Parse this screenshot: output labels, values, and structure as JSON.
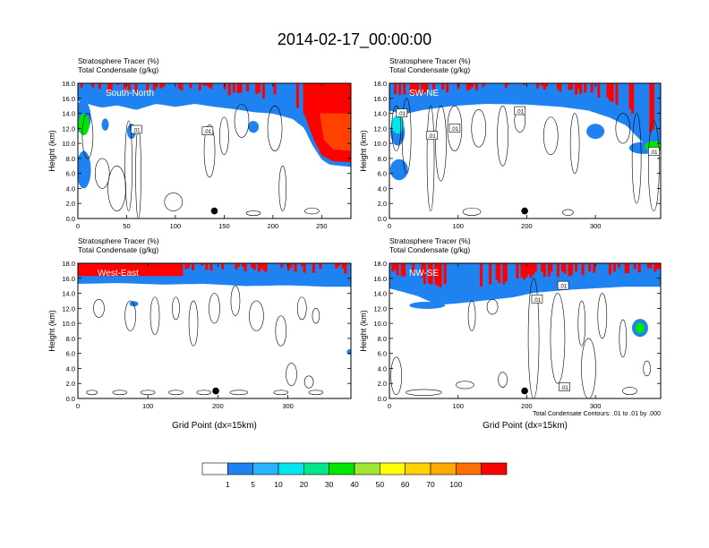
{
  "figure": {
    "title": "2014-02-17_00:00:00",
    "footnote": "Total Condensate Contours: .01 to .01 by .000"
  },
  "colorbar": {
    "colors": [
      "#ffffff",
      "#1e82f0",
      "#28b4ff",
      "#00e6f0",
      "#00e68c",
      "#00e600",
      "#a0e632",
      "#ffff00",
      "#ffd200",
      "#ffaa00",
      "#ff6e00",
      "#ff0000"
    ],
    "labels": [
      "1",
      "5",
      "10",
      "20",
      "30",
      "40",
      "50",
      "60",
      "70",
      "100"
    ]
  },
  "chart_data": [
    {
      "type": "heatmap",
      "panel_label": "South-North",
      "title_line1": "Stratosphere Tracer   (%)",
      "title_line2": "Total Condensate   (g/kg)",
      "ylabel": "Height (km)",
      "xlabel": "",
      "xlim": [
        0,
        280
      ],
      "ylim": [
        0,
        18
      ],
      "x_ticks": [
        0,
        50,
        100,
        150,
        200,
        250
      ],
      "y_ticks": [
        "0.0",
        "2.0",
        "4.0",
        "6.0",
        "8.0",
        "10.0",
        "12.0",
        "14.0",
        "16.0",
        "18.0"
      ],
      "tracer_base_profile_km": [
        [
          0,
          15.8
        ],
        [
          15,
          15.2
        ],
        [
          25,
          14.9
        ],
        [
          40,
          15.2
        ],
        [
          60,
          14.6
        ],
        [
          80,
          15.4
        ],
        [
          100,
          15.0
        ],
        [
          120,
          15.4
        ],
        [
          140,
          15.0
        ],
        [
          160,
          14.7
        ],
        [
          180,
          14.3
        ],
        [
          200,
          14.1
        ],
        [
          220,
          13.4
        ],
        [
          232,
          12.2
        ],
        [
          240,
          10.0
        ],
        [
          250,
          8.0
        ],
        [
          258,
          7.3
        ],
        [
          280,
          7.0
        ]
      ],
      "contour_labels": [
        {
          "text": ".01",
          "x": 60,
          "y": 11.8
        },
        {
          "text": ".01",
          "x": 133,
          "y": 11.6
        }
      ],
      "marker": {
        "x": 140,
        "y": 1.0
      }
    },
    {
      "type": "heatmap",
      "panel_label": "SW-NE",
      "title_line1": "Stratosphere Tracer   (%)",
      "title_line2": "Total Condensate   (g/kg)",
      "ylabel": "Height (km)",
      "xlabel": "",
      "xlim": [
        0,
        395
      ],
      "ylim": [
        0,
        18
      ],
      "x_ticks": [
        0,
        100,
        200,
        300
      ],
      "y_ticks": [
        "0.0",
        "2.0",
        "4.0",
        "6.0",
        "8.0",
        "10.0",
        "12.0",
        "14.0",
        "16.0",
        "18.0"
      ],
      "tracer_base_profile_km": [
        [
          0,
          14.5
        ],
        [
          20,
          14.0
        ],
        [
          50,
          14.6
        ],
        [
          90,
          15.1
        ],
        [
          140,
          15.4
        ],
        [
          200,
          15.3
        ],
        [
          250,
          15.0
        ],
        [
          290,
          14.5
        ],
        [
          320,
          13.6
        ],
        [
          345,
          12.5
        ],
        [
          365,
          10.6
        ],
        [
          380,
          9.6
        ],
        [
          395,
          9.2
        ]
      ],
      "contour_labels": [
        {
          "text": ".01",
          "x": 18,
          "y": 14.0
        },
        {
          "text": ".01",
          "x": 62,
          "y": 11.0
        },
        {
          "text": ".01",
          "x": 95,
          "y": 12.0
        },
        {
          "text": ".01",
          "x": 190,
          "y": 14.3
        },
        {
          "text": ".01",
          "x": 385,
          "y": 8.9
        }
      ],
      "marker": {
        "x": 197,
        "y": 1.0
      }
    },
    {
      "type": "heatmap",
      "panel_label": "West-East",
      "title_line1": "Stratosphere Tracer   (%)",
      "title_line2": "Total Condensate   (g/kg)",
      "ylabel": "Height (km)",
      "xlabel": "Grid Point (dx=15km)",
      "xlim": [
        0,
        390
      ],
      "ylim": [
        0,
        18
      ],
      "x_ticks": [
        0,
        100,
        200,
        300
      ],
      "y_ticks": [
        "0.0",
        "2.0",
        "4.0",
        "6.0",
        "8.0",
        "10.0",
        "12.0",
        "14.0",
        "16.0",
        "18.0"
      ],
      "tracer_base_profile_km": [
        [
          0,
          15.4
        ],
        [
          60,
          15.5
        ],
        [
          120,
          15.3
        ],
        [
          180,
          15.4
        ],
        [
          240,
          15.1
        ],
        [
          300,
          15.2
        ],
        [
          360,
          15.0
        ],
        [
          390,
          15.0
        ]
      ],
      "contour_labels": [],
      "marker": {
        "x": 197,
        "y": 1.0
      }
    },
    {
      "type": "heatmap",
      "panel_label": "NW-SE",
      "title_line1": "Stratosphere Tracer   (%)",
      "title_line2": "Total Condensate   (g/kg)",
      "ylabel": "Height (km)",
      "xlabel": "Grid Point (dx=15km)",
      "xlim": [
        0,
        395
      ],
      "ylim": [
        0,
        18
      ],
      "x_ticks": [
        0,
        100,
        200,
        300
      ],
      "y_ticks": [
        "0.0",
        "2.0",
        "4.0",
        "6.0",
        "8.0",
        "10.0",
        "12.0",
        "14.0",
        "16.0",
        "18.0"
      ],
      "tracer_base_profile_km": [
        [
          0,
          14.8
        ],
        [
          40,
          13.8
        ],
        [
          70,
          12.6
        ],
        [
          100,
          12.8
        ],
        [
          140,
          13.2
        ],
        [
          180,
          13.6
        ],
        [
          210,
          14.2
        ],
        [
          260,
          14.6
        ],
        [
          300,
          14.8
        ],
        [
          340,
          15.0
        ],
        [
          395,
          15.0
        ]
      ],
      "contour_labels": [
        {
          "text": ".01",
          "x": 215,
          "y": 13.2
        },
        {
          "text": ".01",
          "x": 253,
          "y": 15.0
        },
        {
          "text": ".01",
          "x": 255,
          "y": 1.5
        }
      ],
      "marker": {
        "x": 197,
        "y": 1.0
      }
    }
  ]
}
